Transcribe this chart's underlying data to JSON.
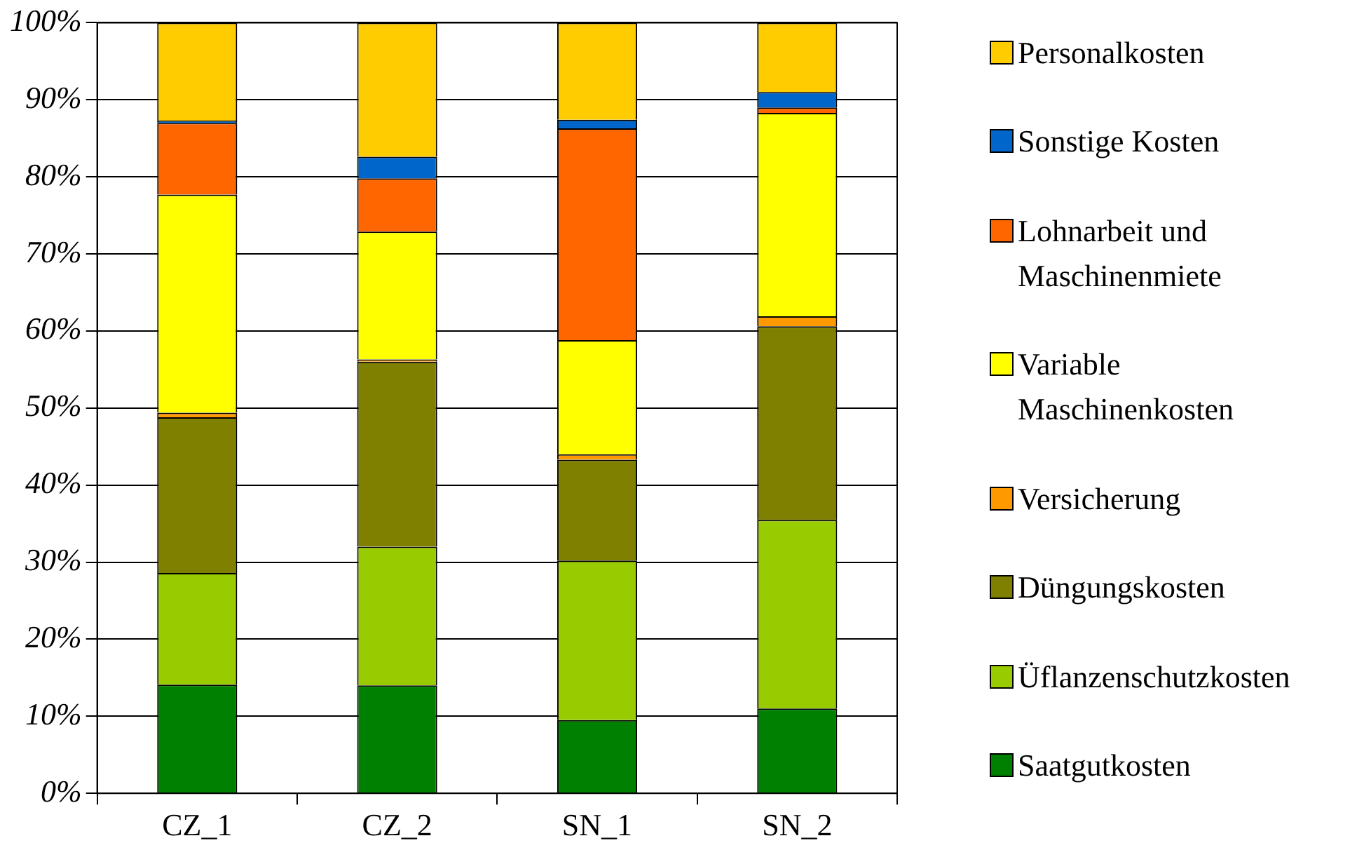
{
  "chart_data": {
    "type": "bar",
    "stacked": true,
    "categories": [
      "CZ_1",
      "CZ_2",
      "SN_1",
      "SN_2"
    ],
    "series": [
      {
        "name": "Saatgutkosten",
        "color": "#008000",
        "values": [
          14.1,
          14.0,
          9.5,
          11.0
        ]
      },
      {
        "name": "Üflanzenschutzkosten",
        "color": "#99cc00",
        "values": [
          14.5,
          18.0,
          20.7,
          24.5
        ]
      },
      {
        "name": "Düngungskosten",
        "color": "#808000",
        "values": [
          20.2,
          24.0,
          13.1,
          25.1
        ]
      },
      {
        "name": "Versicherung",
        "color": "#ff9900",
        "values": [
          0.6,
          0.3,
          0.7,
          1.3
        ]
      },
      {
        "name": "Variable Maschinenkosten",
        "color": "#ffff00",
        "values": [
          28.3,
          16.6,
          14.8,
          26.4
        ]
      },
      {
        "name": "Lohnarbeit und Maschinenmiete",
        "color": "#ff6600",
        "values": [
          9.3,
          6.9,
          27.5,
          0.7
        ]
      },
      {
        "name": "Sonstige Kosten",
        "color": "#0066cc",
        "values": [
          0.3,
          2.8,
          1.1,
          2.0
        ]
      },
      {
        "name": "Personalkosten",
        "color": "#ffcc00",
        "values": [
          12.7,
          17.4,
          12.6,
          9.0
        ]
      }
    ],
    "ylim": [
      0,
      100
    ],
    "yticks": [
      {
        "value": 0,
        "label": "0%"
      },
      {
        "value": 10,
        "label": "10%"
      },
      {
        "value": 20,
        "label": "20%"
      },
      {
        "value": 30,
        "label": "30%"
      },
      {
        "value": 40,
        "label": "40%"
      },
      {
        "value": 50,
        "label": "50%"
      },
      {
        "value": 60,
        "label": "60%"
      },
      {
        "value": 70,
        "label": "70%"
      },
      {
        "value": 80,
        "label": "80%"
      },
      {
        "value": 90,
        "label": "90%"
      },
      {
        "value": 100,
        "label": "100%"
      }
    ],
    "grid": "y",
    "legend": "right"
  }
}
